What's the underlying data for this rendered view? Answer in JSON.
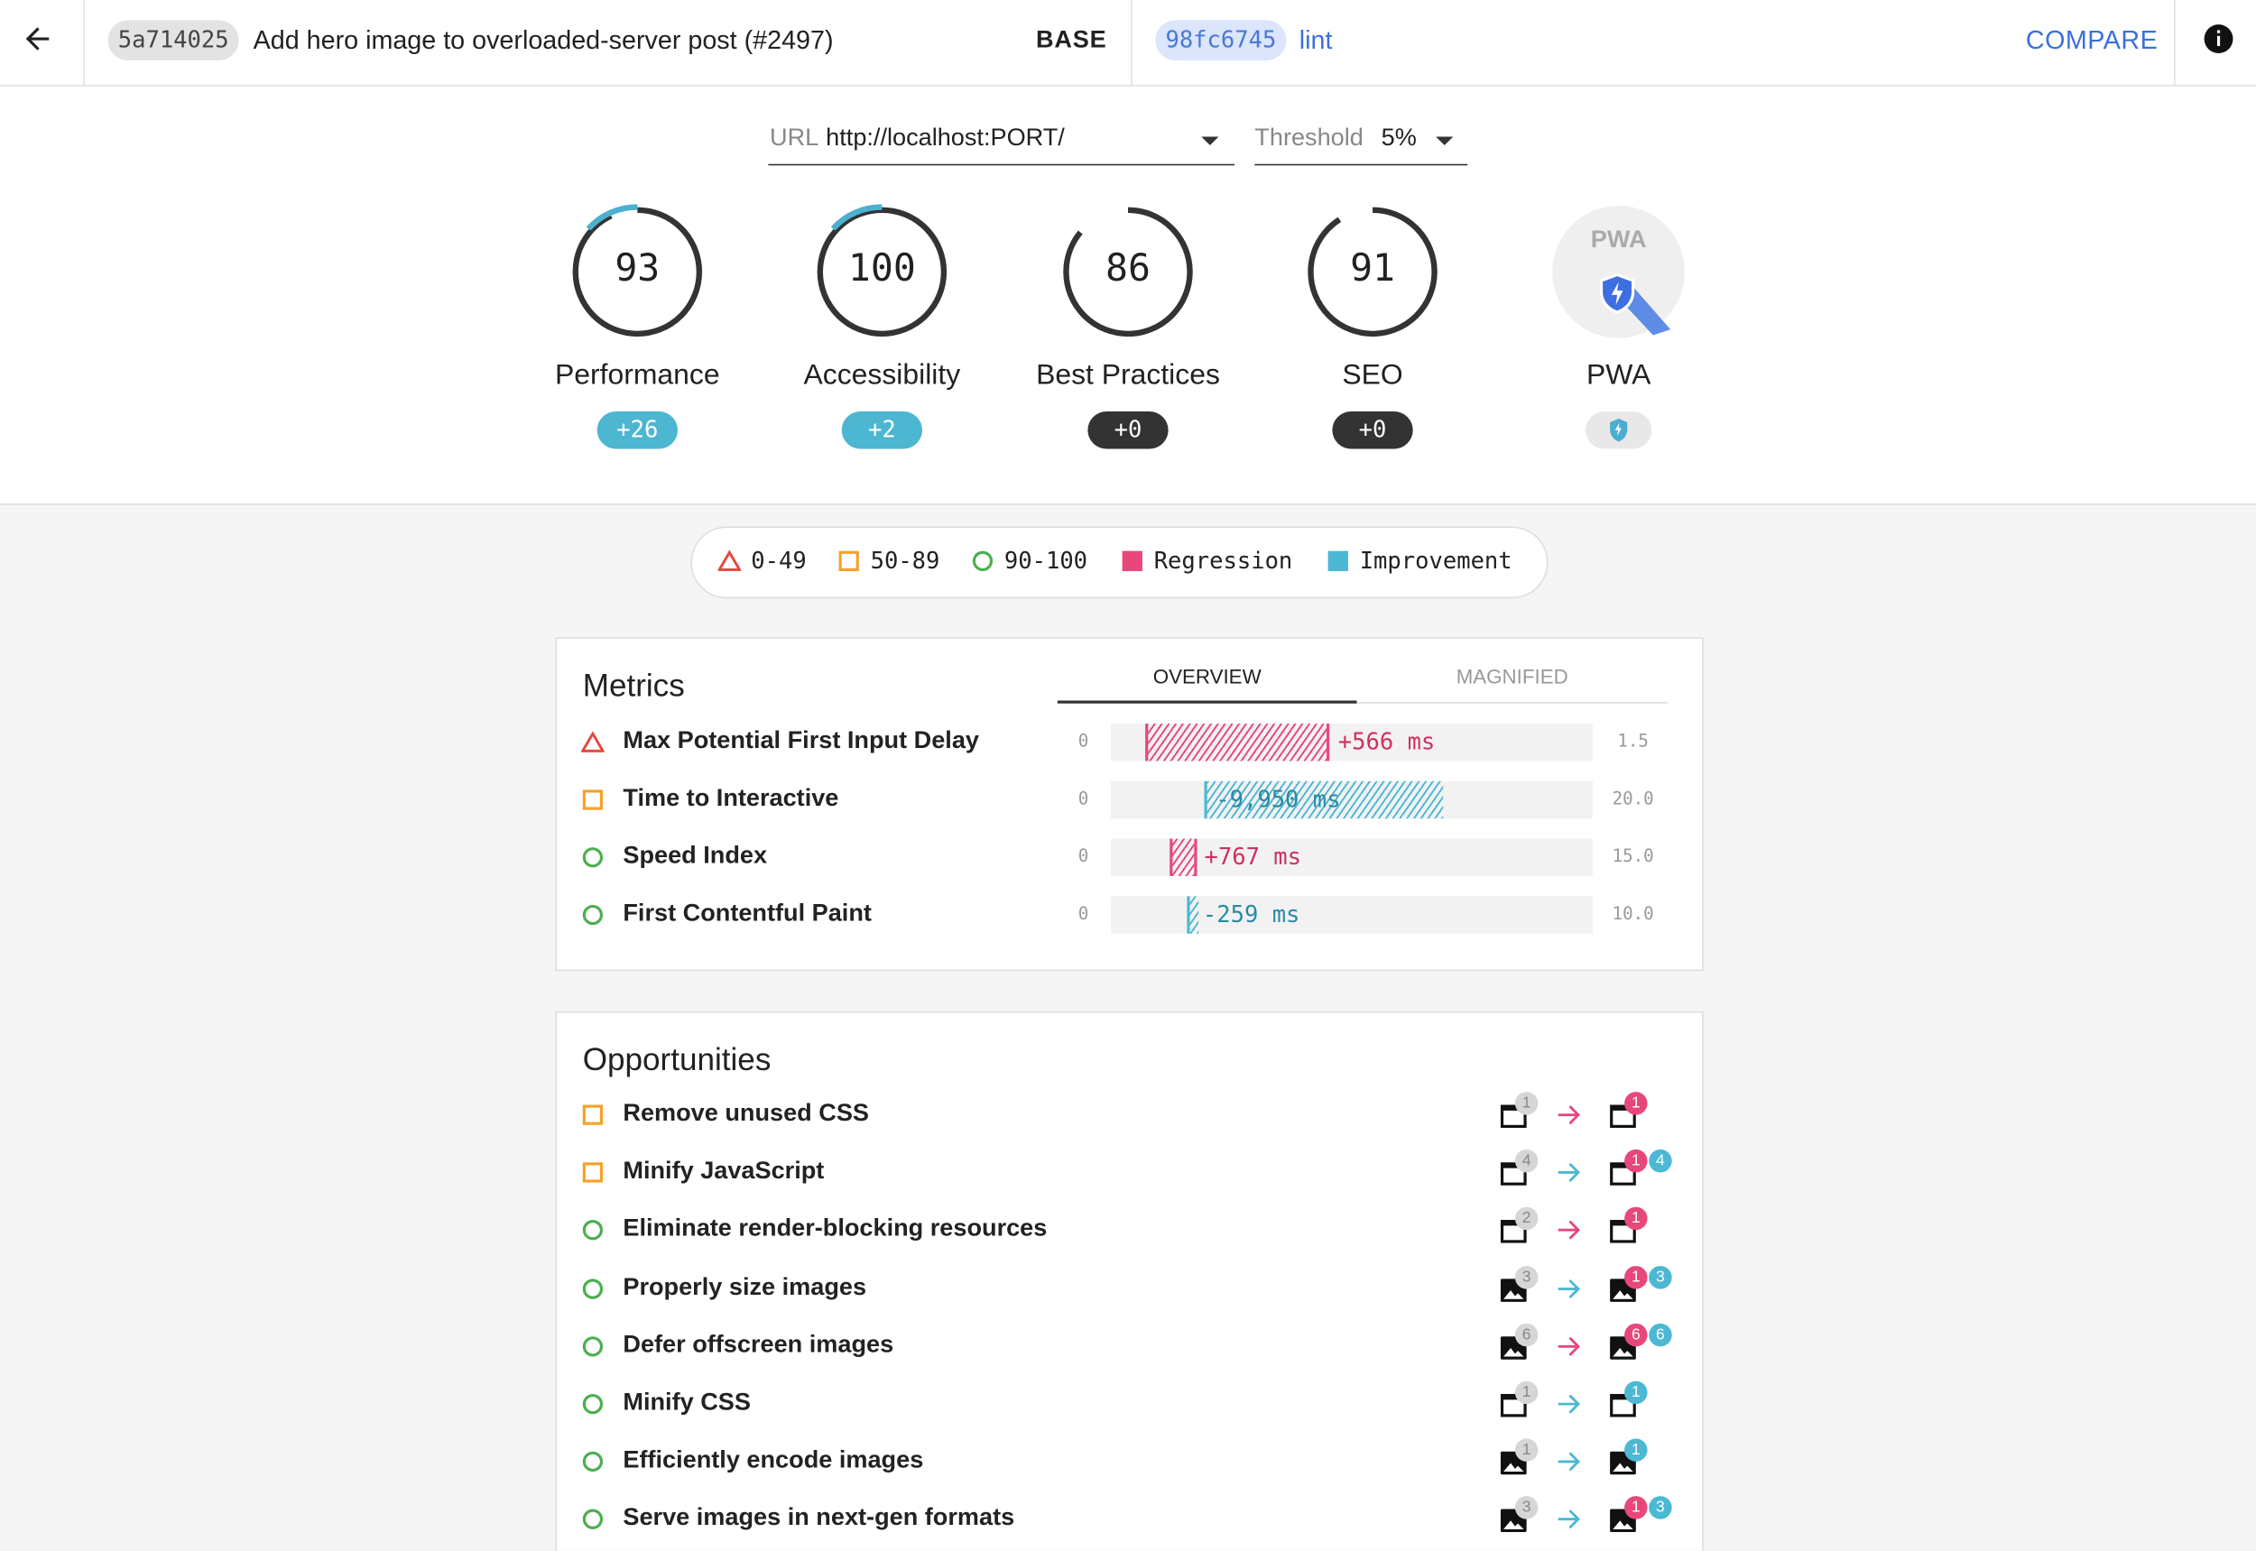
{
  "header": {
    "base": {
      "hash": "5a714025",
      "message": "Add hero image to overloaded-server post (#2497)",
      "label": "BASE"
    },
    "compare": {
      "hash": "98fc6745",
      "message": "lint",
      "label": "COMPARE"
    }
  },
  "filters": {
    "url": {
      "label": "URL",
      "value": "http://localhost:PORT/"
    },
    "threshold": {
      "label": "Threshold",
      "value": "5%"
    }
  },
  "categories": [
    {
      "score": 93,
      "label": "Performance",
      "diff": "+26"
    },
    {
      "score": 100,
      "label": "Accessibility",
      "diff": "+2"
    },
    {
      "score": 86,
      "label": "Best Practices",
      "diff": "+0"
    },
    {
      "score": 91,
      "label": "SEO",
      "diff": "+0"
    }
  ],
  "pwa": {
    "badge": "PWA",
    "label": "PWA"
  },
  "legend": [
    "0-49",
    "50-89",
    "90-100",
    "Regression",
    "Improvement"
  ],
  "metrics": {
    "title": "Metrics",
    "tabs": [
      "OVERVIEW",
      "MAGNIFIED"
    ],
    "rows": [
      {
        "name": "Max Potential First Input Delay",
        "min": "0",
        "delta": "+566 ms",
        "max": "1.5"
      },
      {
        "name": "Time to Interactive",
        "min": "0",
        "delta": "-9,950 ms",
        "max": "20.0"
      },
      {
        "name": "Speed Index",
        "min": "0",
        "delta": "+767 ms",
        "max": "15.0"
      },
      {
        "name": "First Contentful Paint",
        "min": "0",
        "delta": "-259 ms",
        "max": "10.0"
      }
    ]
  },
  "opportunities": {
    "title": "Opportunities",
    "rows": [
      {
        "name": "Remove unused CSS",
        "base": "1",
        "compare": [
          "1"
        ]
      },
      {
        "name": "Minify JavaScript",
        "base": "4",
        "compare": [
          "1",
          "4"
        ]
      },
      {
        "name": "Eliminate render-blocking resources",
        "base": "2",
        "compare": [
          "1"
        ]
      },
      {
        "name": "Properly size images",
        "base": "3",
        "compare": [
          "1",
          "3"
        ]
      },
      {
        "name": "Defer offscreen images",
        "base": "6",
        "compare": [
          "6",
          "6"
        ]
      },
      {
        "name": "Minify CSS",
        "base": "1",
        "compare": [
          "1"
        ]
      },
      {
        "name": "Efficiently encode images",
        "base": "1",
        "compare": [
          "1"
        ]
      },
      {
        "name": "Serve images in next-gen formats",
        "base": "3",
        "compare": [
          "1",
          "3"
        ]
      }
    ]
  }
}
